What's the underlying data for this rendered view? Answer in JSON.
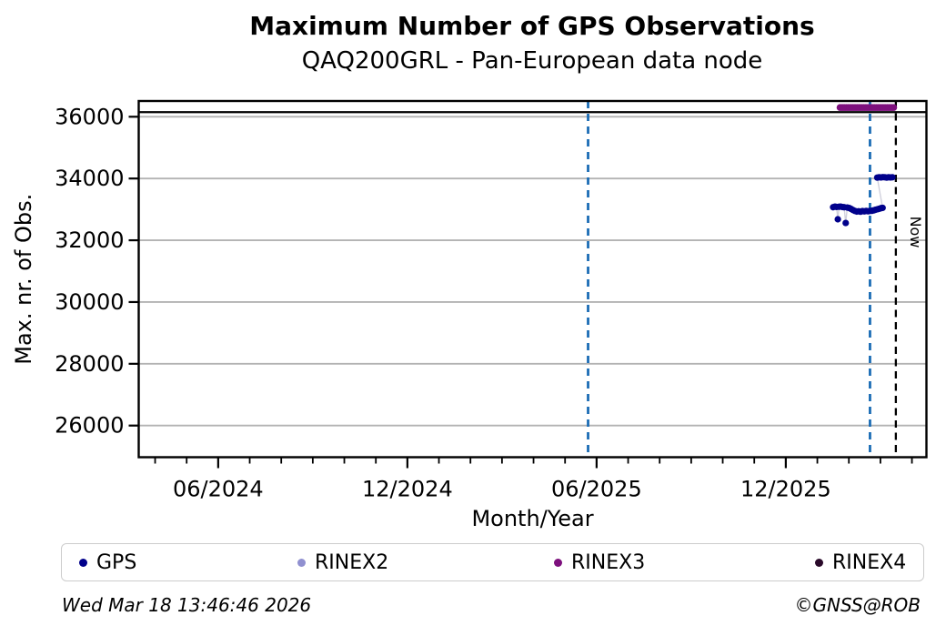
{
  "header": {
    "title": "Maximum Number of GPS Observations",
    "subtitle": "QAQ200GRL - Pan-European data node"
  },
  "footer": {
    "timestamp": "Wed Mar 18 13:46:46 2026",
    "copyright": "©GNSS@ROB"
  },
  "legend": {
    "items": [
      {
        "label": "GPS",
        "color": "#00008b"
      },
      {
        "label": "RINEX2",
        "color": "#9090d0"
      },
      {
        "label": "RINEX3",
        "color": "#7d107d"
      },
      {
        "label": "RINEX4",
        "color": "#2a0a2a"
      }
    ]
  },
  "chart_data": {
    "type": "scatter",
    "title": "Maximum Number of GPS Observations",
    "subtitle": "QAQ200GRL - Pan-European data node",
    "xlabel": "Month/Year",
    "ylabel": "Max. nr. of Obs.",
    "x_unit": "months_since_2024-01-01",
    "x_range": [
      2.48,
      27.46
    ],
    "y_range": [
      24975,
      36510
    ],
    "grid": "horizontal",
    "grid_color": "#b3b3b3",
    "x_major_ticks": [
      {
        "m": 5,
        "label": "06/2024"
      },
      {
        "m": 11,
        "label": "12/2024"
      },
      {
        "m": 17,
        "label": "06/2025"
      },
      {
        "m": 23,
        "label": "12/2025"
      }
    ],
    "x_minor_ticks_m": [
      3,
      4,
      6,
      7,
      8,
      9,
      10,
      12,
      13,
      14,
      15,
      16,
      18,
      19,
      20,
      21,
      22,
      24,
      25,
      26,
      27
    ],
    "y_ticks": [
      {
        "value": 26000,
        "label": "26000"
      },
      {
        "value": 28000,
        "label": "28000"
      },
      {
        "value": 30000,
        "label": "30000"
      },
      {
        "value": 32000,
        "label": "32000"
      },
      {
        "value": 34000,
        "label": "34000"
      },
      {
        "value": 36000,
        "label": "36000"
      }
    ],
    "reference_lines": {
      "max_obs_line": {
        "value": 36150,
        "style": "solid",
        "color": "#000000"
      },
      "date_markers_m": {
        "values": [
          16.73,
          25.67
        ],
        "style": "dashed",
        "color": "#1b6cb5"
      },
      "now_line": {
        "m": 26.49,
        "label": "Now",
        "style": "dashed",
        "color": "#000000"
      }
    },
    "series": [
      {
        "name": "GPS",
        "color": "#00008b",
        "connector": true,
        "points": [
          [
            24.5,
            33070
          ],
          [
            24.56,
            33090
          ],
          [
            24.61,
            33080
          ],
          [
            24.65,
            32680
          ],
          [
            24.69,
            33085
          ],
          [
            24.74,
            33090
          ],
          [
            24.8,
            33075
          ],
          [
            24.85,
            33070
          ],
          [
            24.9,
            32560
          ],
          [
            24.95,
            33060
          ],
          [
            25.01,
            33045
          ],
          [
            25.07,
            33015
          ],
          [
            25.13,
            32980
          ],
          [
            25.19,
            32950
          ],
          [
            25.25,
            32930
          ],
          [
            25.31,
            32940
          ],
          [
            25.37,
            32925
          ],
          [
            25.43,
            32945
          ],
          [
            25.49,
            32935
          ],
          [
            25.55,
            32950
          ],
          [
            25.61,
            32940
          ],
          [
            25.67,
            32950
          ],
          [
            25.73,
            32955
          ],
          [
            25.79,
            32970
          ],
          [
            25.85,
            32990
          ],
          [
            25.91,
            33005
          ],
          [
            25.96,
            33020
          ],
          [
            26.02,
            33040
          ],
          [
            26.07,
            33050
          ],
          [
            25.9,
            34030
          ],
          [
            25.96,
            34040
          ],
          [
            26.02,
            34035
          ],
          [
            26.08,
            34045
          ],
          [
            26.14,
            34040
          ],
          [
            26.2,
            34030
          ],
          [
            26.26,
            34040
          ],
          [
            26.32,
            34035
          ],
          [
            26.38,
            34040
          ]
        ]
      },
      {
        "name": "RINEX2",
        "color": "#9090d0",
        "connector": false,
        "points": []
      },
      {
        "name": "RINEX3",
        "color": "#7d107d",
        "connector": false,
        "points": [
          [
            24.72,
            36300
          ],
          [
            24.77,
            36300
          ],
          [
            24.82,
            36300
          ],
          [
            24.87,
            36300
          ],
          [
            24.92,
            36300
          ],
          [
            24.97,
            36300
          ],
          [
            25.02,
            36300
          ],
          [
            25.07,
            36300
          ],
          [
            25.12,
            36300
          ],
          [
            25.17,
            36300
          ],
          [
            25.22,
            36300
          ],
          [
            25.27,
            36300
          ],
          [
            25.32,
            36300
          ],
          [
            25.37,
            36300
          ],
          [
            25.42,
            36300
          ],
          [
            25.47,
            36300
          ],
          [
            25.52,
            36300
          ],
          [
            25.57,
            36300
          ],
          [
            25.62,
            36300
          ],
          [
            25.67,
            36300
          ],
          [
            25.72,
            36300
          ],
          [
            25.77,
            36300
          ],
          [
            25.82,
            36300
          ],
          [
            25.87,
            36300
          ],
          [
            25.92,
            36300
          ],
          [
            25.97,
            36300
          ],
          [
            26.02,
            36300
          ],
          [
            26.07,
            36300
          ],
          [
            26.12,
            36300
          ],
          [
            26.17,
            36300
          ],
          [
            26.22,
            36300
          ],
          [
            26.27,
            36300
          ],
          [
            26.32,
            36300
          ],
          [
            26.37,
            36300
          ],
          [
            26.42,
            36300
          ]
        ]
      },
      {
        "name": "RINEX4",
        "color": "#2a0a2a",
        "connector": false,
        "points": []
      }
    ]
  }
}
